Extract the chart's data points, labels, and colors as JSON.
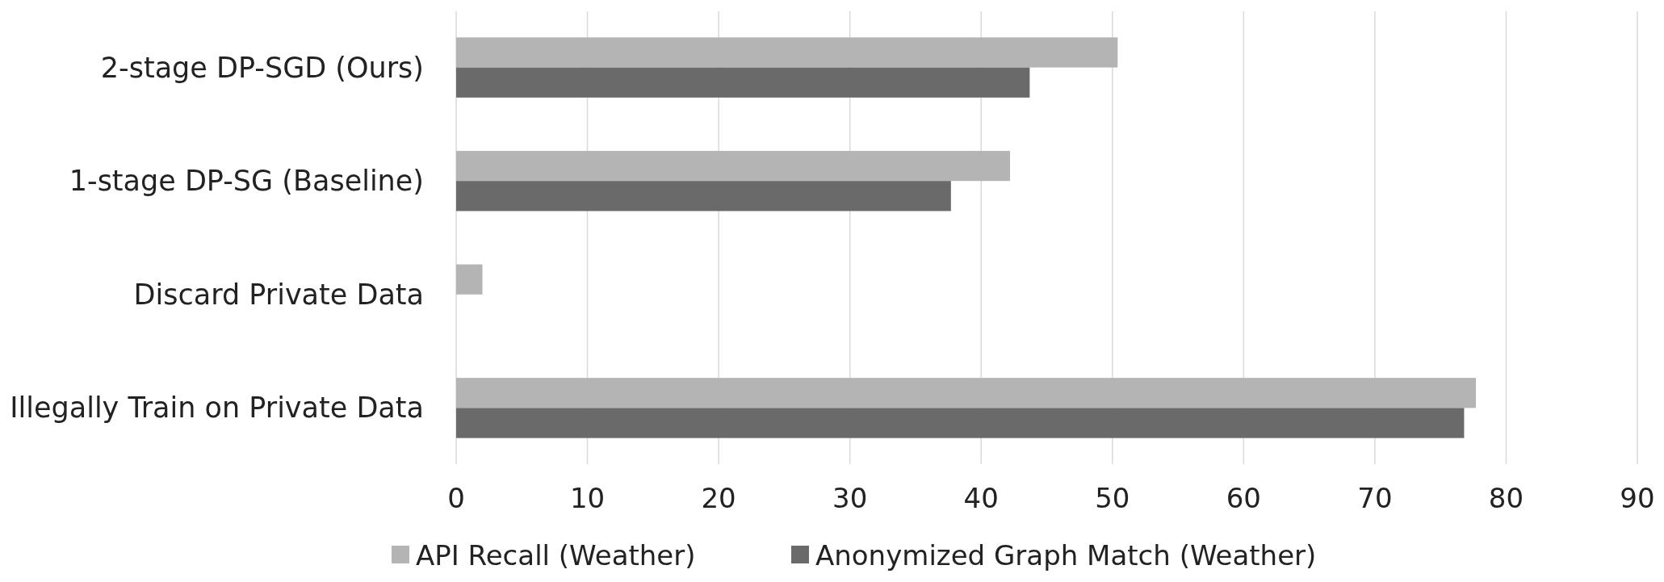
{
  "chart_data": {
    "type": "bar",
    "orientation": "horizontal",
    "categories": [
      "2-stage DP-SGD (Ours)",
      "1-stage DP-SG (Baseline)",
      "Discard Private Data",
      "Illegally Train on Private Data"
    ],
    "series": [
      {
        "name": "API Recall (Weather)",
        "color": "#b4b4b4",
        "values": [
          50.4,
          42.2,
          2.0,
          77.7
        ]
      },
      {
        "name": "Anonymized Graph Match (Weather)",
        "color": "#6a6a6a",
        "values": [
          43.7,
          37.7,
          null,
          76.8
        ]
      }
    ],
    "xlim": [
      0,
      90
    ],
    "xticks": [
      0,
      10,
      20,
      30,
      40,
      50,
      60,
      70,
      80,
      90
    ],
    "grid": "x",
    "legend": "bottom"
  }
}
